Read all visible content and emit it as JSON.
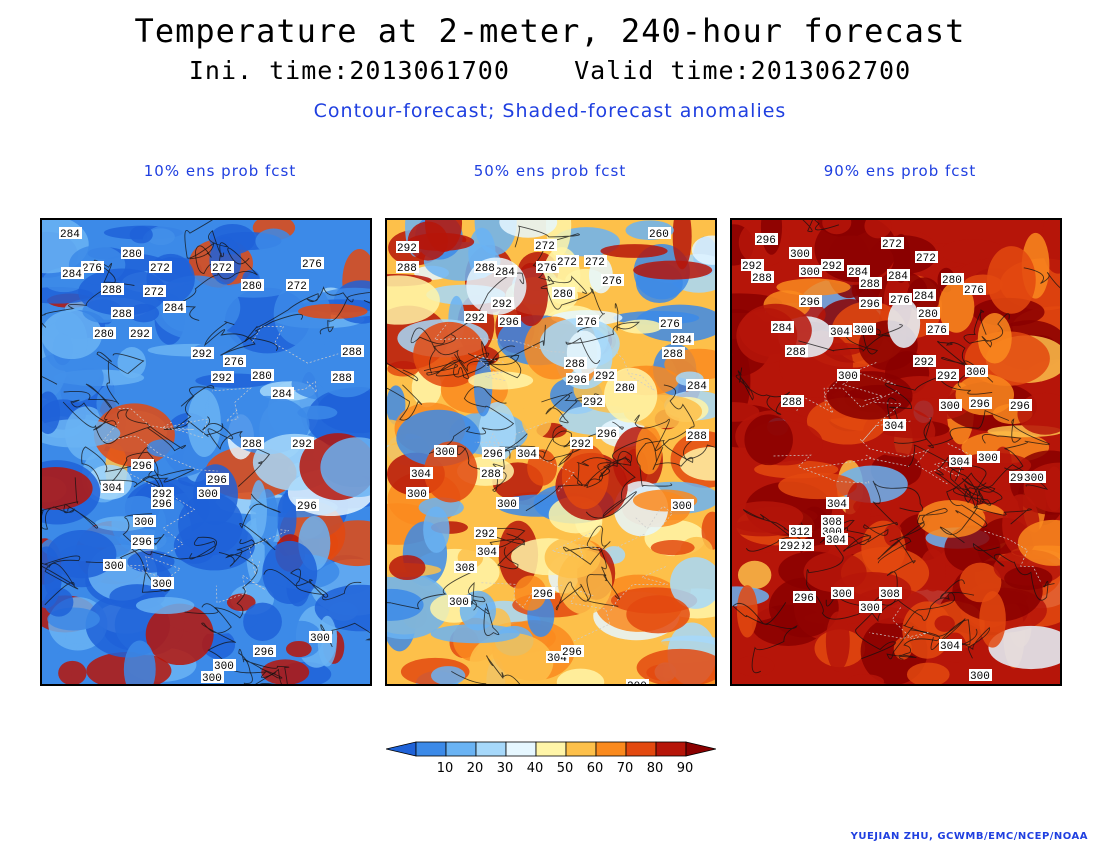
{
  "title": "Temperature at 2-meter, 240-hour forecast",
  "subtitle": "Ini. time:2013061700    Valid time:2013062700",
  "description": "Contour-forecast; Shaded-forecast anomalies",
  "panels": [
    {
      "title": "10% ens prob fcst",
      "theme": "cool",
      "labels": [
        "284",
        "280",
        "272",
        "272",
        "276",
        "272",
        "280",
        "272",
        "276",
        "284",
        "288",
        "284",
        "288",
        "280",
        "292",
        "292",
        "276",
        "280",
        "284",
        "292",
        "288",
        "292",
        "296",
        "296",
        "304",
        "292",
        "296",
        "300",
        "300",
        "300",
        "292",
        "300",
        "296",
        "296",
        "300",
        "296",
        "300",
        "300",
        "288",
        "288"
      ]
    },
    {
      "title": "50% ens prob fcst",
      "theme": "mixed",
      "labels": [
        "292",
        "288",
        "284",
        "272",
        "276",
        "272",
        "272",
        "276",
        "260",
        "288",
        "292",
        "292",
        "296",
        "280",
        "276",
        "284",
        "276",
        "288",
        "288",
        "296",
        "292",
        "280",
        "292",
        "292",
        "296",
        "300",
        "296",
        "288",
        "300",
        "304",
        "304",
        "300",
        "292",
        "304",
        "308",
        "300",
        "296",
        "304",
        "296",
        "300",
        "300",
        "288",
        "284"
      ]
    },
    {
      "title": "90% ens prob fcst",
      "theme": "warm",
      "labels": [
        "296",
        "300",
        "292",
        "288",
        "300",
        "292",
        "284",
        "272",
        "272",
        "280",
        "276",
        "288",
        "284",
        "276",
        "296",
        "296",
        "284",
        "280",
        "304",
        "300",
        "276",
        "288",
        "292",
        "284",
        "288",
        "300",
        "292",
        "300",
        "296",
        "300",
        "296",
        "304",
        "296",
        "304",
        "300",
        "292",
        "304",
        "308",
        "312",
        "300",
        "304",
        "292",
        "296",
        "300",
        "308",
        "300",
        "304",
        "300",
        "288",
        "300"
      ]
    }
  ],
  "colorbar": {
    "ticks": [
      "10",
      "20",
      "30",
      "40",
      "50",
      "60",
      "70",
      "80",
      "90"
    ],
    "colors": [
      "#1f62d8",
      "#3c8ae8",
      "#6ab3f3",
      "#a6d8fa",
      "#e6f7ff",
      "#fff5a8",
      "#fdc04a",
      "#fa8a1e",
      "#e3490f",
      "#b61509",
      "#8a0000"
    ]
  },
  "credit": "YUEJIAN ZHU, GCWMB/EMC/NCEP/NOAA"
}
